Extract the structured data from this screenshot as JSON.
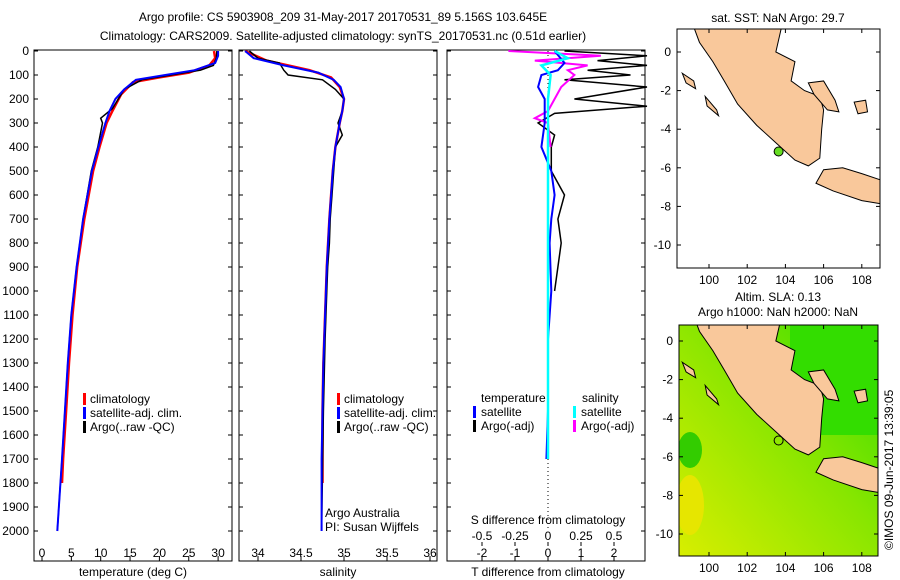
{
  "title_line1": "Argo profile: CS 5903908_209 31-May-2017 20170531_89 5.156S 103.645E",
  "title_line2": "Climatology: CARS2009. Satellite-adjusted climatology: synTS_20170531.nc (0.51d earlier)",
  "credit": "©IMOS 09-Jun-2017 13:39:05",
  "colors": {
    "climatology": "#ff0000",
    "satellite_adj": "#0000ff",
    "argo": "#000000",
    "sal_satellite": "#00ffff",
    "sal_argo": "#ff00ff",
    "land": "#f9c89b"
  },
  "chart_data": [
    {
      "type": "line",
      "panel": "temperature",
      "xlabel": "temperature (deg C)",
      "ylabel": "depth",
      "xlim": [
        -1,
        31
      ],
      "ylim": [
        2050,
        0
      ],
      "xticks": [
        "0",
        "5",
        "10",
        "15",
        "20",
        "25",
        "30"
      ],
      "yticks": [
        "0",
        "100",
        "200",
        "300",
        "400",
        "500",
        "600",
        "700",
        "800",
        "900",
        "1000",
        "1100",
        "1200",
        "1300",
        "1400",
        "1500",
        "1600",
        "1700",
        "1800",
        "1900",
        "2000"
      ],
      "legend": [
        "climatology",
        "satellite-adj. clim.",
        "Argo(..raw -QC)"
      ],
      "series": [
        {
          "name": "climatology",
          "depth": [
            0,
            30,
            60,
            90,
            110,
            130,
            180,
            250,
            300,
            400,
            500,
            700,
            900,
            1100,
            1300,
            1500,
            1700,
            1800
          ],
          "values": [
            29.3,
            29.5,
            28.5,
            25,
            20,
            15.5,
            13.5,
            12,
            11,
            9.8,
            8.7,
            7.2,
            6,
            5.2,
            4.6,
            4.1,
            3.6,
            3.4
          ]
        },
        {
          "name": "satellite-adj. clim.",
          "depth": [
            0,
            20,
            50,
            80,
            100,
            120,
            160,
            200,
            250,
            300,
            400,
            500,
            700,
            900,
            1100,
            1300,
            1500,
            1700,
            2000
          ],
          "values": [
            30,
            30,
            29.5,
            26,
            21,
            16,
            14,
            12.5,
            11.5,
            10.8,
            9.6,
            8.5,
            7,
            5.9,
            5,
            4.4,
            3.9,
            3.4,
            2.6
          ]
        },
        {
          "name": "Argo(..raw -QC)",
          "depth": [
            0,
            30,
            60,
            80,
            100,
            120,
            160,
            200,
            240,
            280,
            300,
            400,
            500,
            700,
            900,
            1100,
            1300,
            1500,
            1700,
            2000
          ],
          "values": [
            29.8,
            29.7,
            29.2,
            27,
            22,
            17,
            14,
            13,
            12,
            10,
            10.3,
            9.5,
            8.4,
            7,
            5.9,
            5,
            4.4,
            3.9,
            3.4,
            2.6
          ]
        }
      ]
    },
    {
      "type": "line",
      "panel": "salinity",
      "xlabel": "salinity",
      "xlim": [
        33.78,
        36.08
      ],
      "ylim": [
        2050,
        0
      ],
      "xticks": [
        "34",
        "34.5",
        "35",
        "35.5",
        "36"
      ],
      "legend": [
        "climatology",
        "satellite-adj. clim.",
        "Argo(..raw -QC)"
      ],
      "annotation": [
        "Argo Australia",
        "PI: Susan Wijffels"
      ],
      "series": [
        {
          "name": "climatology",
          "depth": [
            0,
            40,
            80,
            110,
            150,
            200,
            250,
            300,
            400,
            500,
            700,
            900,
            1100,
            1300,
            1500,
            1800
          ],
          "values": [
            33.85,
            34.1,
            34.6,
            34.85,
            34.95,
            35.0,
            34.98,
            34.95,
            34.9,
            34.87,
            34.83,
            34.8,
            34.78,
            34.76,
            34.75,
            34.75
          ]
        },
        {
          "name": "satellite-adj. clim.",
          "depth": [
            0,
            30,
            60,
            90,
            120,
            150,
            200,
            250,
            300,
            400,
            500,
            700,
            900,
            1100,
            1300,
            1500,
            1700,
            2000
          ],
          "values": [
            33.85,
            33.95,
            34.3,
            34.7,
            34.88,
            34.96,
            35.0,
            34.98,
            34.95,
            34.9,
            34.87,
            34.83,
            34.8,
            34.78,
            34.76,
            34.75,
            34.74,
            34.74
          ]
        },
        {
          "name": "Argo(..raw -QC)",
          "depth": [
            0,
            30,
            50,
            80,
            100,
            120,
            160,
            200,
            250,
            300,
            350,
            400,
            500,
            600,
            700,
            800,
            900,
            1000,
            1200,
            1500,
            2000
          ],
          "values": [
            33.9,
            34.0,
            34.25,
            34.3,
            34.35,
            34.75,
            34.9,
            35.0,
            34.98,
            34.93,
            34.98,
            34.9,
            34.88,
            34.86,
            34.84,
            34.83,
            34.81,
            34.8,
            34.78,
            34.76,
            34.74
          ]
        }
      ]
    },
    {
      "type": "line",
      "panel": "difference",
      "xlabel": "T difference from climatology",
      "x2label": "S difference from climatology",
      "xlim": [
        -3,
        3
      ],
      "ylim": [
        2050,
        0
      ],
      "xticks": [
        "-2",
        "-1",
        "0",
        "1",
        "2"
      ],
      "x2ticks": [
        "-0.5",
        "-0.25",
        "0",
        "0.25",
        "0.5"
      ],
      "legend_temperature": {
        "title": "temperature",
        "items": [
          "satellite",
          "Argo(-adj)"
        ]
      },
      "legend_salinity": {
        "title": "salinity",
        "items": [
          "satellite",
          "Argo(-adj)"
        ]
      },
      "series": [
        {
          "name": "T satellite",
          "depth": [
            0,
            50,
            80,
            100,
            150,
            200,
            300,
            400,
            500,
            600,
            700,
            800,
            1000,
            1200,
            1500,
            1700
          ],
          "values": [
            0.2,
            0.5,
            0.3,
            -0.2,
            -0.3,
            -0.1,
            -0.1,
            -0.2,
            0.1,
            0.2,
            0.1,
            0.05,
            0.1,
            0,
            0,
            -0.05
          ]
        },
        {
          "name": "T Argo(-adj)",
          "depth": [
            0,
            20,
            40,
            60,
            80,
            100,
            120,
            150,
            200,
            230,
            260,
            300,
            350,
            400,
            500,
            600,
            700,
            800,
            900,
            1000
          ],
          "values": [
            0.5,
            3,
            1.5,
            3,
            1.2,
            2.5,
            0.5,
            3,
            0.8,
            3,
            0.2,
            -0.3,
            0.2,
            0.1,
            0.1,
            0.5,
            0.3,
            0.4,
            0.3,
            0.2
          ]
        },
        {
          "name": "S satellite",
          "depth": [
            0,
            30,
            60,
            100,
            150,
            200,
            300,
            500,
            700,
            1000,
            1300,
            1600,
            1700
          ],
          "values": [
            0.05,
            0.15,
            -0.05,
            0.02,
            0.01,
            0,
            0,
            0,
            0,
            0,
            0,
            0,
            0
          ]
        },
        {
          "name": "S Argo(-adj)",
          "depth": [
            0,
            20,
            40,
            60,
            80,
            100,
            150,
            200,
            250,
            280,
            300,
            400
          ],
          "values": [
            -0.3,
            0.4,
            -0.1,
            0.3,
            0.15,
            0.2,
            0.1,
            0.05,
            0,
            -0.1,
            0,
            0.02
          ]
        }
      ]
    }
  ],
  "map_sst": {
    "title": "sat. SST: NaN Argo: 29.7",
    "xticks": [
      "100",
      "102",
      "104",
      "106",
      "108"
    ],
    "yticks": [
      "0",
      "-2",
      "-4",
      "-6",
      "-8",
      "-10"
    ],
    "argo_lon": 103.645,
    "argo_lat": -5.156
  },
  "map_sla": {
    "title_line1": "Altim. SLA: 0.13",
    "title_line2": "Argo h1000: NaN h2000: NaN",
    "xticks": [
      "100",
      "102",
      "104",
      "106",
      "108"
    ],
    "yticks": [
      "0",
      "-2",
      "-4",
      "-6",
      "-8",
      "-10"
    ]
  }
}
